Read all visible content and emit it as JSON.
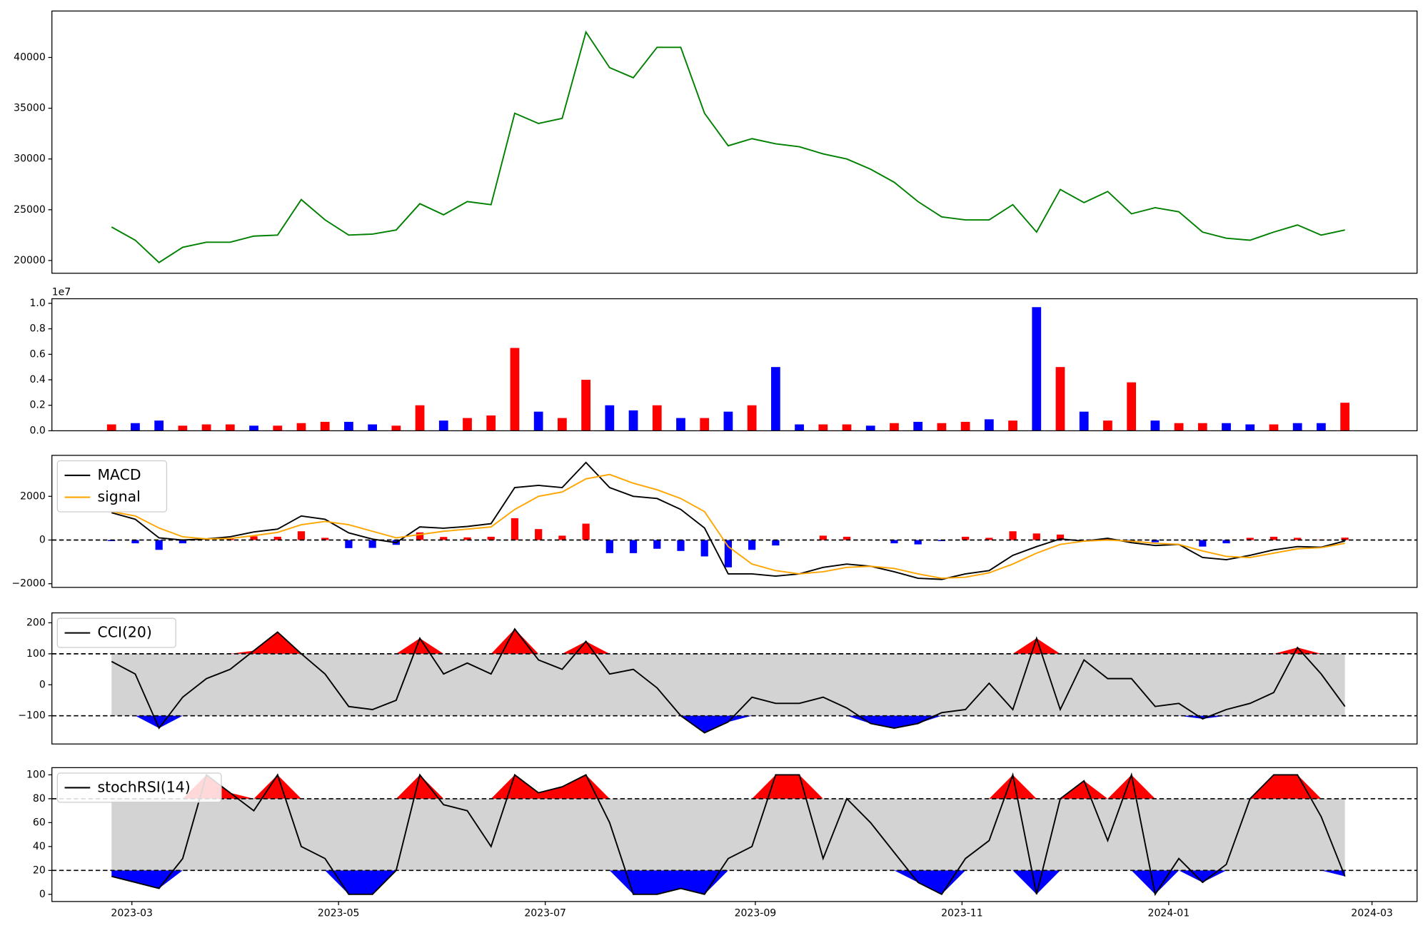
{
  "chart_data": [
    {
      "type": "line",
      "color": "green",
      "x": [
        53,
        60,
        67,
        74,
        81,
        88,
        95,
        102,
        109,
        116,
        123,
        130,
        137,
        144,
        151,
        158,
        165,
        172,
        179,
        186,
        193,
        200,
        207,
        214,
        221,
        228,
        235,
        242,
        249,
        256,
        263,
        270,
        277,
        284,
        291,
        298,
        305,
        312,
        319,
        326,
        333,
        340,
        347,
        354,
        361,
        368,
        375,
        382,
        389,
        396,
        403,
        410,
        417
      ],
      "values": [
        23300,
        22000,
        19800,
        21300,
        21800,
        21800,
        22400,
        22500,
        26000,
        24000,
        22500,
        22600,
        23000,
        25600,
        24500,
        25800,
        25500,
        34500,
        33500,
        34000,
        42500,
        39000,
        38000,
        41000,
        41000,
        34500,
        31300,
        32000,
        31500,
        31200,
        30500,
        30000,
        29000,
        27700,
        25800,
        24300,
        24000,
        24000,
        25500,
        22800,
        27000,
        25700,
        26800,
        24600,
        25200,
        24800,
        22800,
        22200,
        22000,
        22800,
        23500,
        22500,
        23000
      ],
      "xlim": [
        35.4,
        438.3
      ],
      "ylim": [
        18744,
        44575
      ],
      "yticks": [
        20000,
        25000,
        30000,
        35000,
        40000
      ]
    },
    {
      "type": "bar",
      "offset_label": "1e7",
      "x": [
        53,
        60,
        67,
        74,
        81,
        88,
        95,
        102,
        109,
        116,
        123,
        130,
        137,
        144,
        151,
        158,
        165,
        172,
        179,
        186,
        193,
        200,
        207,
        214,
        221,
        228,
        235,
        242,
        249,
        256,
        263,
        270,
        277,
        284,
        291,
        298,
        305,
        312,
        319,
        326,
        333,
        340,
        347,
        354,
        361,
        368,
        375,
        382,
        389,
        396,
        403,
        410,
        417
      ],
      "values": [
        0.05,
        0.06,
        0.08,
        0.04,
        0.05,
        0.05,
        0.04,
        0.04,
        0.06,
        0.07,
        0.07,
        0.05,
        0.04,
        0.2,
        0.08,
        0.1,
        0.12,
        0.65,
        0.15,
        0.1,
        0.4,
        0.2,
        0.16,
        0.2,
        0.1,
        0.1,
        0.15,
        0.2,
        0.5,
        0.05,
        0.05,
        0.05,
        0.04,
        0.06,
        0.07,
        0.06,
        0.07,
        0.09,
        0.08,
        0.97,
        0.5,
        0.15,
        0.08,
        0.38,
        0.08,
        0.06,
        0.06,
        0.06,
        0.05,
        0.05,
        0.06,
        0.06,
        0.22
      ],
      "colors": [
        "red",
        "blue",
        "blue",
        "red",
        "red",
        "red",
        "blue",
        "red",
        "red",
        "red",
        "blue",
        "blue",
        "red",
        "red",
        "blue",
        "red",
        "red",
        "red",
        "blue",
        "red",
        "red",
        "blue",
        "blue",
        "red",
        "blue",
        "red",
        "blue",
        "red",
        "blue",
        "blue",
        "red",
        "red",
        "blue",
        "red",
        "blue",
        "red",
        "red",
        "blue",
        "red",
        "blue",
        "red",
        "blue",
        "red",
        "red",
        "blue",
        "red",
        "red",
        "blue",
        "blue",
        "red",
        "blue",
        "blue",
        "red"
      ],
      "xlim": [
        35.4,
        438.3
      ],
      "ylim": [
        0,
        1.036
      ],
      "yticks": [
        {
          "value": 0,
          "label": "0.0"
        },
        0.2,
        0.4,
        0.6,
        0.8,
        {
          "value": 1,
          "label": "1.0"
        }
      ]
    },
    {
      "type": "macd",
      "legend": "upper left",
      "hlines": [
        0
      ],
      "x": [
        53,
        60,
        67,
        74,
        81,
        88,
        95,
        102,
        109,
        116,
        123,
        130,
        137,
        144,
        151,
        158,
        165,
        172,
        179,
        186,
        193,
        200,
        207,
        214,
        221,
        228,
        235,
        242,
        249,
        256,
        263,
        270,
        277,
        284,
        291,
        298,
        305,
        312,
        319,
        326,
        333,
        340,
        347,
        354,
        361,
        368,
        375,
        382,
        389,
        396,
        403,
        410,
        417
      ],
      "series": [
        {
          "name": "MACD",
          "color": "black",
          "values": [
            1250,
            950,
            100,
            0,
            50,
            150,
            370,
            500,
            1100,
            950,
            330,
            40,
            -120,
            600,
            540,
            620,
            750,
            2400,
            2500,
            2400,
            3550,
            2400,
            2000,
            1900,
            1400,
            550,
            -1550,
            -1550,
            -1650,
            -1550,
            -1250,
            -1100,
            -1200,
            -1450,
            -1750,
            -1800,
            -1550,
            -1400,
            -700,
            -300,
            50,
            -50,
            80,
            -120,
            -250,
            -200,
            -800,
            -900,
            -700,
            -450,
            -300,
            -330,
            -40
          ]
        },
        {
          "name": "signal",
          "color": "orange",
          "values": [
            1300,
            1100,
            550,
            150,
            50,
            70,
            200,
            350,
            700,
            850,
            700,
            400,
            100,
            250,
            400,
            500,
            600,
            1400,
            2000,
            2200,
            2800,
            3000,
            2600,
            2300,
            1900,
            1300,
            -300,
            -1100,
            -1400,
            -1550,
            -1450,
            -1250,
            -1200,
            -1300,
            -1550,
            -1750,
            -1700,
            -1500,
            -1100,
            -600,
            -200,
            -50,
            0,
            -50,
            -150,
            -200,
            -500,
            -750,
            -800,
            -600,
            -400,
            -350,
            -150
          ]
        }
      ],
      "histogram": {
        "positive_color": "red",
        "negative_color": "blue",
        "values": [
          -50,
          -150,
          -450,
          -150,
          0,
          80,
          170,
          150,
          400,
          100,
          -370,
          -360,
          -220,
          350,
          140,
          120,
          150,
          1000,
          500,
          200,
          750,
          -600,
          -600,
          -400,
          -500,
          -750,
          -1250,
          -450,
          -250,
          0,
          200,
          150,
          0,
          -150,
          -200,
          -50,
          150,
          100,
          400,
          300,
          250,
          0,
          80,
          -70,
          -100,
          0,
          -300,
          -150,
          100,
          150,
          100,
          20,
          110
        ]
      },
      "xlim": [
        35.4,
        438.3
      ],
      "ylim": [
        -2167,
        3875
      ],
      "yticks": [
        {
          "value": -2000,
          "label": "−2000"
        },
        0,
        2000
      ]
    },
    {
      "type": "band",
      "legend": "upper left",
      "hlines": [
        -100,
        100
      ],
      "band_color": "lightgray",
      "upper_color": "red",
      "lower_color": "blue",
      "x": [
        53,
        60,
        67,
        74,
        81,
        88,
        95,
        102,
        109,
        116,
        123,
        130,
        137,
        144,
        151,
        158,
        165,
        172,
        179,
        186,
        193,
        200,
        207,
        214,
        221,
        228,
        235,
        242,
        249,
        256,
        263,
        270,
        277,
        284,
        291,
        298,
        305,
        312,
        319,
        326,
        333,
        340,
        347,
        354,
        361,
        368,
        375,
        382,
        389,
        396,
        403,
        410,
        417
      ],
      "series": [
        {
          "name": "CCI(20)",
          "color": "black",
          "values": [
            75,
            35,
            -140,
            -40,
            20,
            50,
            110,
            170,
            100,
            35,
            -70,
            -80,
            -50,
            150,
            35,
            70,
            35,
            180,
            80,
            50,
            140,
            35,
            50,
            -10,
            -100,
            -155,
            -120,
            -40,
            -60,
            -60,
            -40,
            -75,
            -125,
            -140,
            -125,
            -90,
            -80,
            5,
            -80,
            150,
            -80,
            80,
            20,
            20,
            -70,
            -60,
            -110,
            -80,
            -60,
            -25,
            120,
            35,
            -70
          ]
        }
      ],
      "xlim": [
        35.4,
        438.3
      ],
      "ylim": [
        -191,
        232
      ],
      "yticks": [
        {
          "value": -100,
          "label": "−100"
        },
        0,
        100,
        200
      ]
    },
    {
      "type": "band",
      "legend": "upper left",
      "hlines": [
        20,
        80
      ],
      "band_color": "lightgray",
      "upper_color": "red",
      "lower_color": "blue",
      "x": [
        53,
        60,
        67,
        74,
        81,
        88,
        95,
        102,
        109,
        116,
        123,
        130,
        137,
        144,
        151,
        158,
        165,
        172,
        179,
        186,
        193,
        200,
        207,
        214,
        221,
        228,
        235,
        242,
        249,
        256,
        263,
        270,
        277,
        284,
        291,
        298,
        305,
        312,
        319,
        326,
        333,
        340,
        347,
        354,
        361,
        368,
        375,
        382,
        389,
        396,
        403,
        410,
        417
      ],
      "series": [
        {
          "name": "stochRSI(14)",
          "color": "black",
          "values": [
            15,
            10,
            5,
            30,
            100,
            85,
            70,
            100,
            40,
            30,
            0,
            0,
            20,
            100,
            75,
            70,
            40,
            100,
            85,
            90,
            100,
            60,
            0,
            0,
            5,
            0,
            30,
            40,
            100,
            100,
            30,
            80,
            60,
            35,
            10,
            0,
            30,
            45,
            100,
            0,
            80,
            95,
            45,
            100,
            0,
            30,
            10,
            25,
            80,
            100,
            100,
            65,
            15
          ]
        }
      ],
      "xlim": [
        35.4,
        438.3
      ],
      "ylim": [
        -6,
        106
      ],
      "yticks": [
        0,
        20,
        40,
        60,
        80,
        100
      ],
      "xticks": [
        {
          "value": 59,
          "label": "2023-03"
        },
        {
          "value": 120,
          "label": "2023-05"
        },
        {
          "value": 181,
          "label": "2023-07"
        },
        {
          "value": 243,
          "label": "2023-09"
        },
        {
          "value": 304,
          "label": "2023-11"
        },
        {
          "value": 365,
          "label": "2024-01"
        },
        {
          "value": 425,
          "label": "2024-03"
        }
      ]
    }
  ]
}
